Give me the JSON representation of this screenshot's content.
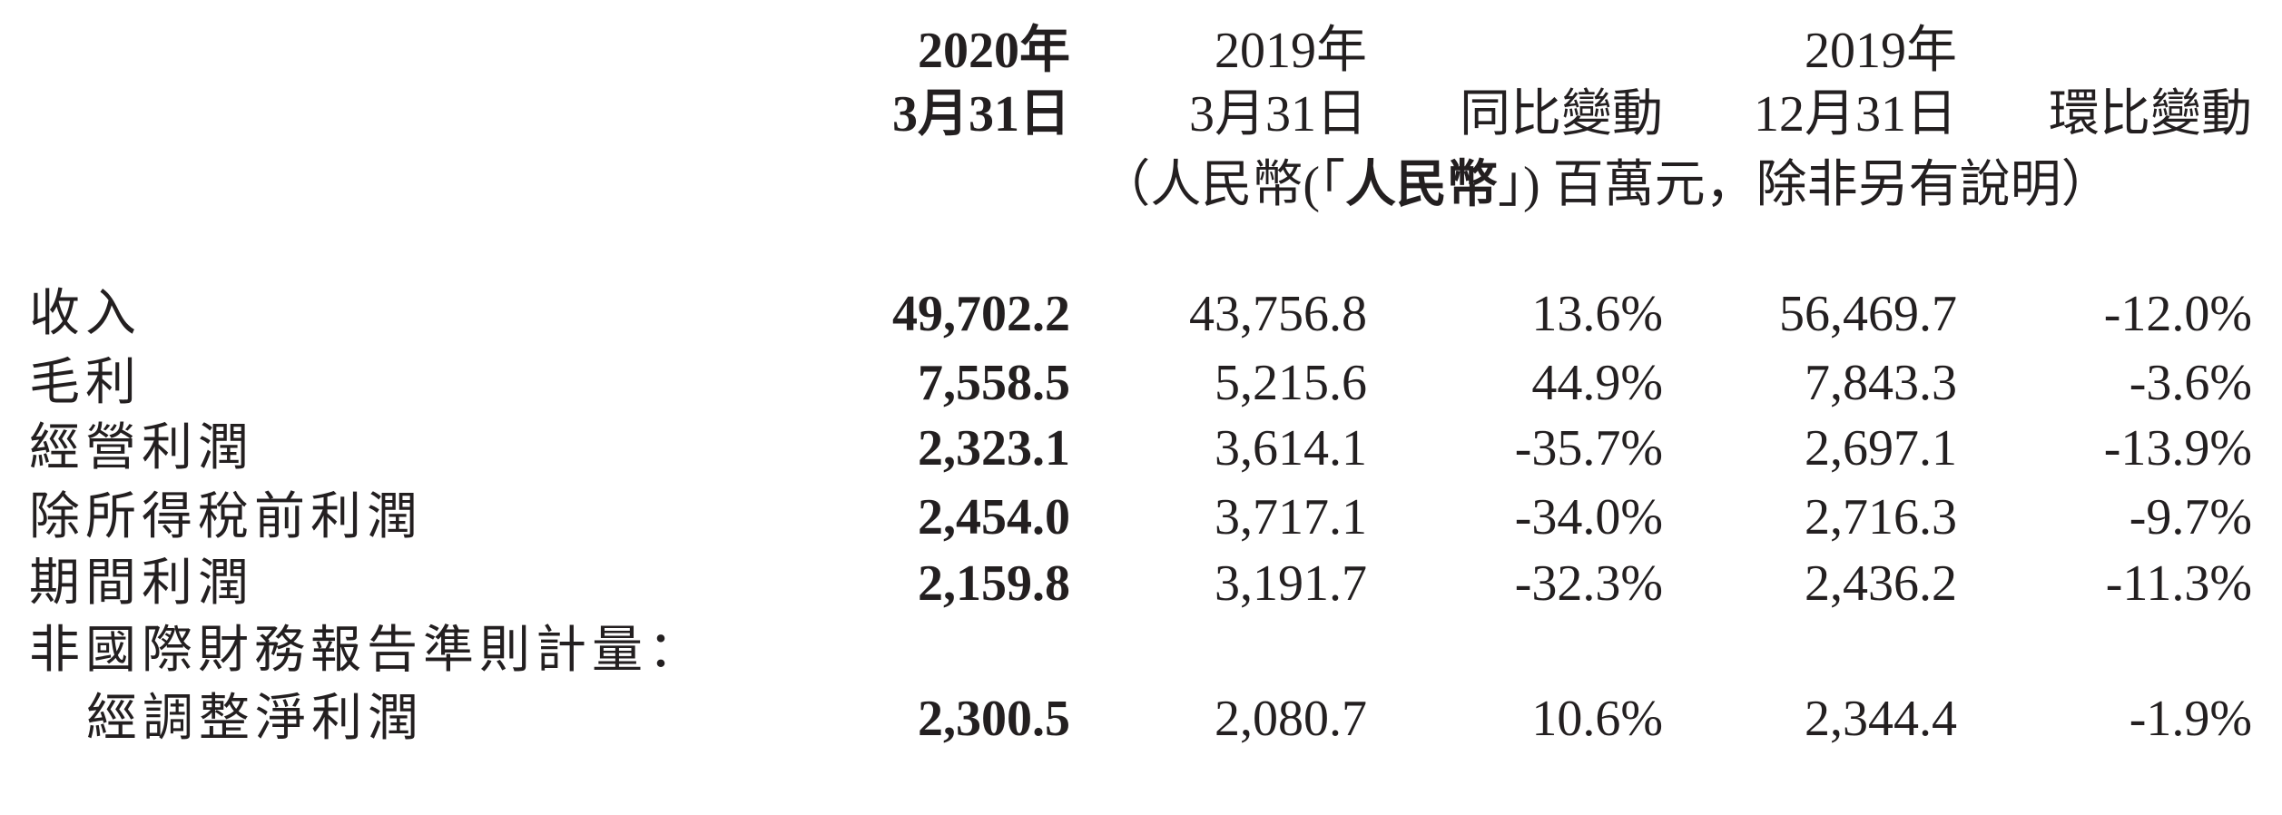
{
  "header": {
    "col1": {
      "year": "2020年",
      "date": "3月31日"
    },
    "col2": {
      "year": "2019年",
      "date": "3月31日"
    },
    "col3": {
      "year": "",
      "date": "同比變動"
    },
    "col4": {
      "year": "2019年",
      "date": "12月31日"
    },
    "col5": {
      "year": "",
      "date": "環比變動"
    },
    "unit_pre": "（人民幣(「",
    "unit_bold": "人民幣",
    "unit_post": "」) 百萬元，除非另有說明）"
  },
  "rows": [
    {
      "label": "收入",
      "v": [
        "49,702.2",
        "43,756.8",
        "13.6%",
        "56,469.7",
        "-12.0%"
      ]
    },
    {
      "label": "毛利",
      "v": [
        "7,558.5",
        "5,215.6",
        "44.9%",
        "7,843.3",
        "-3.6%"
      ]
    },
    {
      "label": "經營利潤",
      "v": [
        "2,323.1",
        "3,614.1",
        "-35.7%",
        "2,697.1",
        "-13.9%"
      ]
    },
    {
      "label": "除所得稅前利潤",
      "v": [
        "2,454.0",
        "3,717.1",
        "-34.0%",
        "2,716.3",
        "-9.7%"
      ]
    },
    {
      "label": "期間利潤",
      "v": [
        "2,159.8",
        "3,191.7",
        "-32.3%",
        "2,436.2",
        "-11.3%"
      ]
    },
    {
      "label": "非國際財務報告準則計量：",
      "v": [
        "",
        "",
        "",
        "",
        ""
      ]
    },
    {
      "label": "經調整淨利潤",
      "v": [
        "2,300.5",
        "2,080.7",
        "10.6%",
        "2,344.4",
        "-1.9%"
      ]
    }
  ]
}
